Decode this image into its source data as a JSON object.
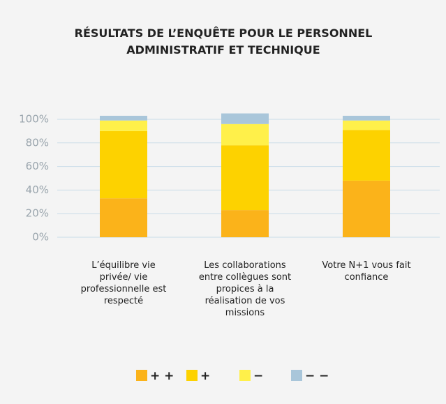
{
  "chart_data": {
    "type": "stacked_bar",
    "title": "RÉSULTATS DE L’ENQUÊTE POUR LE PERSONNEL ADMINISTRATIF ET TECHNIQUE",
    "categories": [
      "L’équilibre vie privée/ vie professionnelle est respecté",
      "Les collaborations entre collègues sont propices à la réalisation de vos missions",
      "Votre N+1 vous fait confiance"
    ],
    "series": [
      {
        "name": "+ +",
        "color": "#fbb31a",
        "values": [
          33,
          23,
          48
        ]
      },
      {
        "name": "+",
        "color": "#fdd200",
        "values": [
          57,
          55,
          43
        ]
      },
      {
        "name": "−",
        "color": "#fff04a",
        "values": [
          9,
          18,
          8
        ]
      },
      {
        "name": "− −",
        "color": "#a9c6da",
        "values": [
          4,
          9,
          4
        ]
      }
    ],
    "ylim": [
      0,
      100
    ],
    "yticks": [
      {
        "value": 0,
        "label": "0%"
      },
      {
        "value": 20,
        "label": "20%"
      },
      {
        "value": 40,
        "label": "40%"
      },
      {
        "value": 60,
        "label": "60%"
      },
      {
        "value": 80,
        "label": "80%"
      },
      {
        "value": 100,
        "label": "100%"
      }
    ],
    "grid": true,
    "legend": "bottom"
  }
}
